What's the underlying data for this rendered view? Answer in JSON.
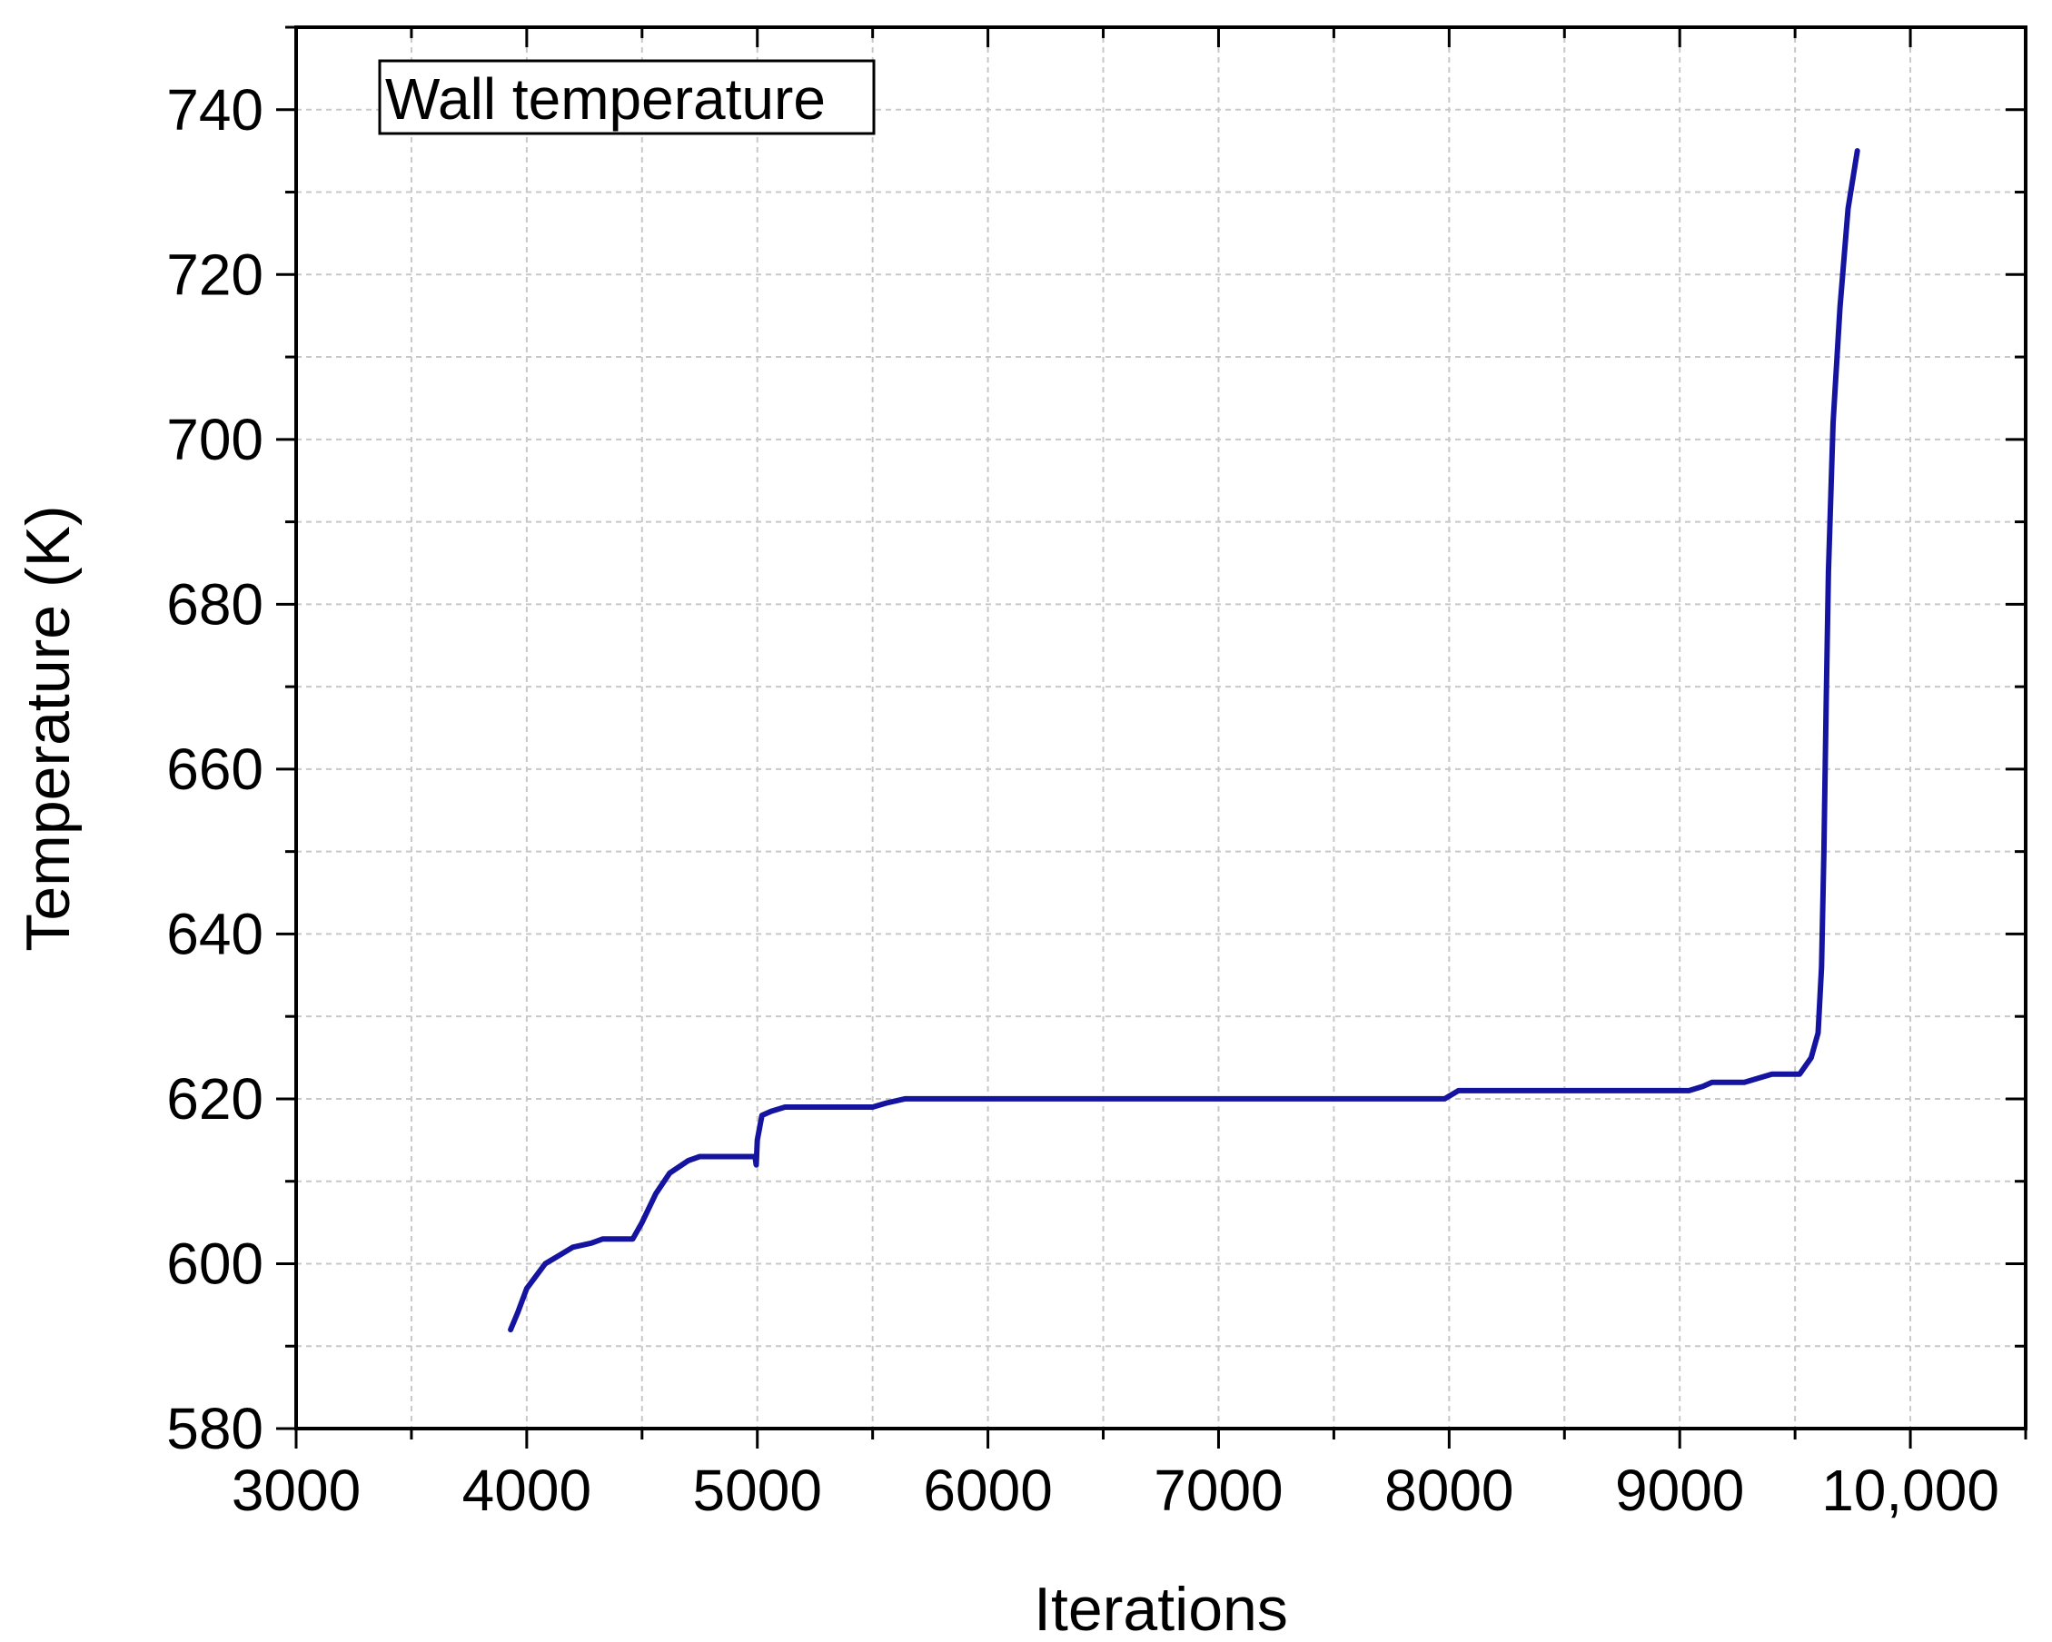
{
  "chart_data": {
    "type": "line",
    "title": "",
    "xlabel": "Iterations",
    "ylabel": "Temperature (K)",
    "xlim": [
      3000,
      10500
    ],
    "ylim": [
      580,
      750
    ],
    "x_ticks": [
      3000,
      4000,
      5000,
      6000,
      7000,
      8000,
      9000,
      10000
    ],
    "x_tick_labels": [
      "3000",
      "4000",
      "5000",
      "6000",
      "7000",
      "8000",
      "9000",
      "10,000"
    ],
    "y_ticks": [
      580,
      600,
      620,
      640,
      660,
      680,
      700,
      720,
      740
    ],
    "y_tick_labels": [
      "580",
      "600",
      "620",
      "640",
      "660",
      "680",
      "700",
      "720",
      "740"
    ],
    "grid": true,
    "legend_position": "top-left",
    "series": [
      {
        "name": "Wall temperature",
        "color": "#1414a0",
        "points": [
          [
            3930,
            592
          ],
          [
            3960,
            594
          ],
          [
            4000,
            597
          ],
          [
            4080,
            600
          ],
          [
            4140,
            601
          ],
          [
            4200,
            602
          ],
          [
            4280,
            602.5
          ],
          [
            4330,
            603
          ],
          [
            4400,
            603
          ],
          [
            4460,
            603
          ],
          [
            4500,
            605
          ],
          [
            4560,
            608.5
          ],
          [
            4620,
            611
          ],
          [
            4700,
            612.5
          ],
          [
            4750,
            613
          ],
          [
            4850,
            613
          ],
          [
            4990,
            613
          ],
          [
            4995,
            612
          ],
          [
            5000,
            615
          ],
          [
            5020,
            618
          ],
          [
            5060,
            618.5
          ],
          [
            5120,
            619
          ],
          [
            5300,
            619
          ],
          [
            5500,
            619
          ],
          [
            5560,
            619.5
          ],
          [
            5640,
            620
          ],
          [
            6000,
            620
          ],
          [
            7000,
            620
          ],
          [
            7600,
            620
          ],
          [
            7980,
            620
          ],
          [
            8040,
            621
          ],
          [
            8500,
            621
          ],
          [
            9000,
            621
          ],
          [
            9040,
            621
          ],
          [
            9100,
            621.5
          ],
          [
            9140,
            622
          ],
          [
            9280,
            622
          ],
          [
            9400,
            623
          ],
          [
            9450,
            623
          ],
          [
            9520,
            623
          ],
          [
            9570,
            625
          ],
          [
            9600,
            628
          ],
          [
            9615,
            636
          ],
          [
            9625,
            650
          ],
          [
            9635,
            668
          ],
          [
            9645,
            684
          ],
          [
            9665,
            702
          ],
          [
            9695,
            716
          ],
          [
            9730,
            728
          ],
          [
            9770,
            735
          ]
        ]
      }
    ]
  }
}
